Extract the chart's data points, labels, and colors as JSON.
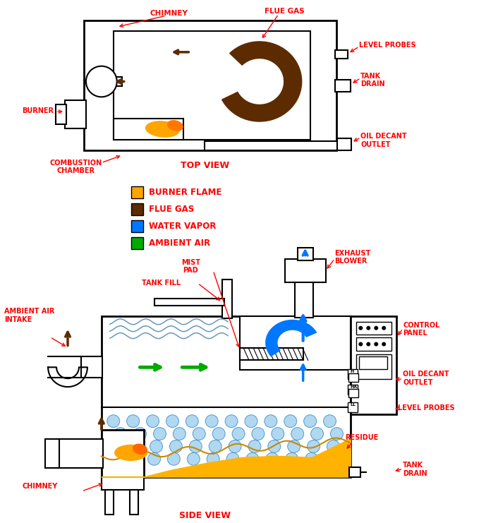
{
  "colors": {
    "red": "#FF0000",
    "orange": "#FFA500",
    "dark_brown": "#5C2B00",
    "blue": "#0077FF",
    "green": "#00AA00",
    "black": "#000000",
    "white": "#FFFFFF",
    "gold": "#FFB300",
    "light_blue_bubble": "#B0D8F0",
    "bubble_edge": "#5599CC",
    "wavy_blue": "#6699BB"
  },
  "legend": [
    {
      "color": "#FFA500",
      "label": "BURNER FLAME"
    },
    {
      "color": "#5C2B00",
      "label": "FLUE GAS"
    },
    {
      "color": "#0077FF",
      "label": "WATER VAPOR"
    },
    {
      "color": "#00AA00",
      "label": "AMBIENT AIR"
    }
  ]
}
